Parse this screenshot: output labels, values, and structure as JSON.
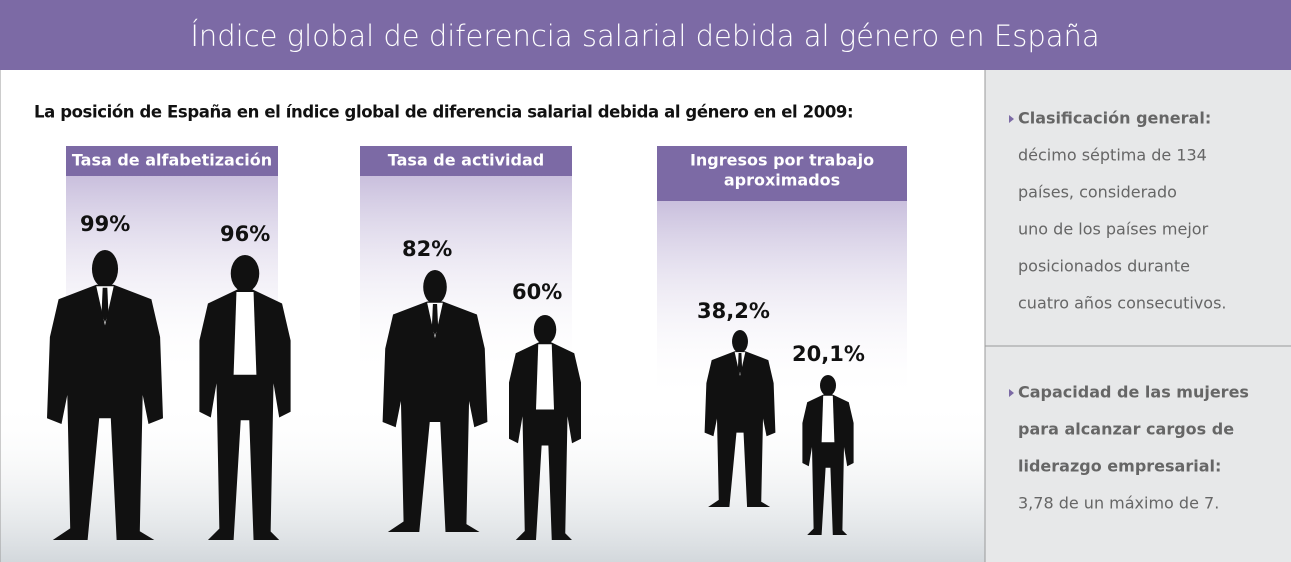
{
  "header": {
    "title": "Índice global de diferencia salarial debida al género en España"
  },
  "subtitle": "La posición de España en el índice global de diferencia salarial debida al género en el 2009:",
  "panels": [
    {
      "title": [
        "Tasa de alfabetización"
      ],
      "figures": [
        {
          "label": "99%"
        },
        {
          "label": "96%"
        }
      ]
    },
    {
      "title": [
        "Tasa de actividad"
      ],
      "figures": [
        {
          "label": "82%"
        },
        {
          "label": "60%"
        }
      ]
    },
    {
      "title": [
        "Ingresos por trabajo",
        "aproximados"
      ],
      "figures": [
        {
          "label": "38,2%"
        },
        {
          "label": "20,1%"
        }
      ]
    }
  ],
  "sidebar": [
    {
      "heading": [
        "Clasificación general:"
      ],
      "text": [
        "décimo séptima de 134",
        "países, considerado",
        "uno de los países mejor",
        "posicionados durante",
        "cuatro años consecutivos."
      ]
    },
    {
      "heading": [
        "Capacidad de las mujeres",
        "para alcanzar cargos de",
        "liderazgo empresarial:"
      ],
      "text": [
        "3,78 de un máximo de 7."
      ]
    }
  ]
}
